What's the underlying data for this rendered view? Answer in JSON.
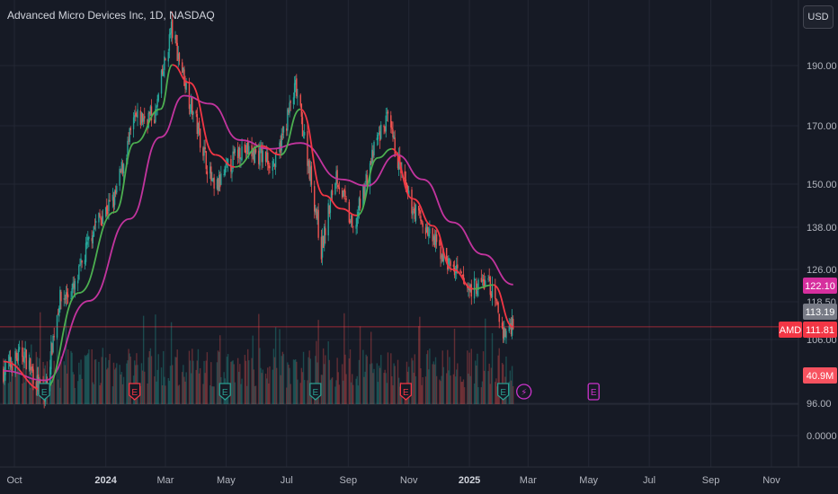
{
  "header": {
    "title": "Advanced Micro Devices Inc, 1D, NASDAQ",
    "currency_button": "USD"
  },
  "colors": {
    "background": "#161a25",
    "up": "#26a69a",
    "down": "#ef5350",
    "ma_fast_up": "#4caf50",
    "ma_fast_down": "#f23645",
    "ma_slow": "#c2349e",
    "earnings_past_up": "#2a9d8f",
    "earnings_past_down": "#f23645",
    "earnings_future": "#cc33cc"
  },
  "price_labels": {
    "ma_slow": {
      "text": "122.10",
      "color": "#d62f9e"
    },
    "last_close": {
      "text": "113.19",
      "color": "#787b86"
    },
    "symbol": {
      "text": "AMD",
      "color": "#f23645"
    },
    "ma_fast": {
      "text": "111.81",
      "color": "#f23645"
    },
    "volume": {
      "text": "40.9M",
      "color": "#f7525f"
    }
  },
  "events": {
    "earnings_marker": "E",
    "dividend_marker": "⚡"
  },
  "chart_data": {
    "type": "candlestick",
    "symbol": "AMD",
    "interval": "1D",
    "exchange": "NASDAQ",
    "y_axis": {
      "scale": "log",
      "ticks": [
        "190.00",
        "170.00",
        "150.00",
        "138.00",
        "126.00",
        "118.50",
        "106.00",
        "96.00",
        "0.0000"
      ]
    },
    "x_axis": {
      "ticks": [
        {
          "label": "Oct",
          "date": "2023-10-01",
          "bold": false
        },
        {
          "label": "2024",
          "date": "2024-01-01",
          "bold": true
        },
        {
          "label": "Mar",
          "date": "2024-03-01",
          "bold": false
        },
        {
          "label": "May",
          "date": "2024-05-01",
          "bold": false
        },
        {
          "label": "Jul",
          "date": "2024-07-01",
          "bold": false
        },
        {
          "label": "Sep",
          "date": "2024-09-01",
          "bold": false
        },
        {
          "label": "Nov",
          "date": "2024-11-01",
          "bold": false
        },
        {
          "label": "2025",
          "date": "2025-01-01",
          "bold": true
        },
        {
          "label": "Mar",
          "date": "2025-03-01",
          "bold": false
        },
        {
          "label": "May",
          "date": "2025-05-01",
          "bold": false
        },
        {
          "label": "Jul",
          "date": "2025-07-01",
          "bold": false
        },
        {
          "label": "Sep",
          "date": "2025-09-01",
          "bold": false
        },
        {
          "label": "Nov",
          "date": "2025-11-01",
          "bold": false
        }
      ]
    },
    "price_path": [
      [
        "2023-09-20",
        102
      ],
      [
        "2023-10-10",
        106
      ],
      [
        "2023-10-31",
        96
      ],
      [
        "2023-11-15",
        118
      ],
      [
        "2023-12-01",
        121
      ],
      [
        "2023-12-20",
        138
      ],
      [
        "2024-01-10",
        146
      ],
      [
        "2024-01-30",
        172
      ],
      [
        "2024-02-20",
        174
      ],
      [
        "2024-03-07",
        208
      ],
      [
        "2024-03-25",
        180
      ],
      [
        "2024-04-19",
        148
      ],
      [
        "2024-05-15",
        162
      ],
      [
        "2024-06-03",
        160
      ],
      [
        "2024-06-20",
        157
      ],
      [
        "2024-07-10",
        184
      ],
      [
        "2024-08-05",
        131
      ],
      [
        "2024-08-20",
        154
      ],
      [
        "2024-09-06",
        136
      ],
      [
        "2024-09-30",
        165
      ],
      [
        "2024-10-10",
        172
      ],
      [
        "2024-10-31",
        146
      ],
      [
        "2024-11-20",
        136
      ],
      [
        "2024-12-10",
        128
      ],
      [
        "2024-12-31",
        121
      ],
      [
        "2025-01-20",
        123
      ],
      [
        "2025-02-05",
        110
      ],
      [
        "2025-02-14",
        113.19
      ]
    ],
    "ma_fast": [
      [
        "2023-09-20",
        104
      ],
      [
        "2023-10-31",
        98
      ],
      [
        "2023-12-05",
        120
      ],
      [
        "2024-01-10",
        142
      ],
      [
        "2024-01-30",
        164
      ],
      [
        "2024-02-25",
        176
      ],
      [
        "2024-03-08",
        193
      ],
      [
        "2024-03-25",
        186
      ],
      [
        "2024-04-20",
        160
      ],
      [
        "2024-05-10",
        156
      ],
      [
        "2024-06-05",
        163
      ],
      [
        "2024-06-25",
        160
      ],
      [
        "2024-07-15",
        176
      ],
      [
        "2024-08-08",
        147
      ],
      [
        "2024-08-25",
        143
      ],
      [
        "2024-09-10",
        141
      ],
      [
        "2024-10-01",
        159
      ],
      [
        "2024-10-15",
        162
      ],
      [
        "2024-11-05",
        146
      ],
      [
        "2024-11-25",
        138
      ],
      [
        "2024-12-15",
        126
      ],
      [
        "2025-01-05",
        121
      ],
      [
        "2025-01-25",
        122
      ],
      [
        "2025-02-14",
        111.81
      ]
    ],
    "ma_slow": [
      [
        "2023-09-20",
        102
      ],
      [
        "2023-11-01",
        100
      ],
      [
        "2023-12-15",
        118
      ],
      [
        "2024-01-25",
        140
      ],
      [
        "2024-02-25",
        166
      ],
      [
        "2024-03-20",
        181
      ],
      [
        "2024-04-15",
        178
      ],
      [
        "2024-05-15",
        165
      ],
      [
        "2024-06-15",
        162
      ],
      [
        "2024-07-15",
        164
      ],
      [
        "2024-08-25",
        152
      ],
      [
        "2024-09-20",
        150
      ],
      [
        "2024-10-20",
        160
      ],
      [
        "2024-11-15",
        152
      ],
      [
        "2024-12-15",
        139
      ],
      [
        "2025-01-15",
        130
      ],
      [
        "2025-02-14",
        122.1
      ]
    ],
    "volume_last": "40.9M",
    "earnings_dates": [
      {
        "date": "2023-10-31",
        "type": "past-up"
      },
      {
        "date": "2024-01-30",
        "type": "past-down"
      },
      {
        "date": "2024-04-30",
        "type": "past-up"
      },
      {
        "date": "2024-07-30",
        "type": "past-up"
      },
      {
        "date": "2024-10-29",
        "type": "past-down"
      },
      {
        "date": "2025-02-04",
        "type": "past-up"
      },
      {
        "date": "2025-05-06",
        "type": "future"
      }
    ],
    "dividend_dates": [
      "2025-02-14"
    ]
  }
}
